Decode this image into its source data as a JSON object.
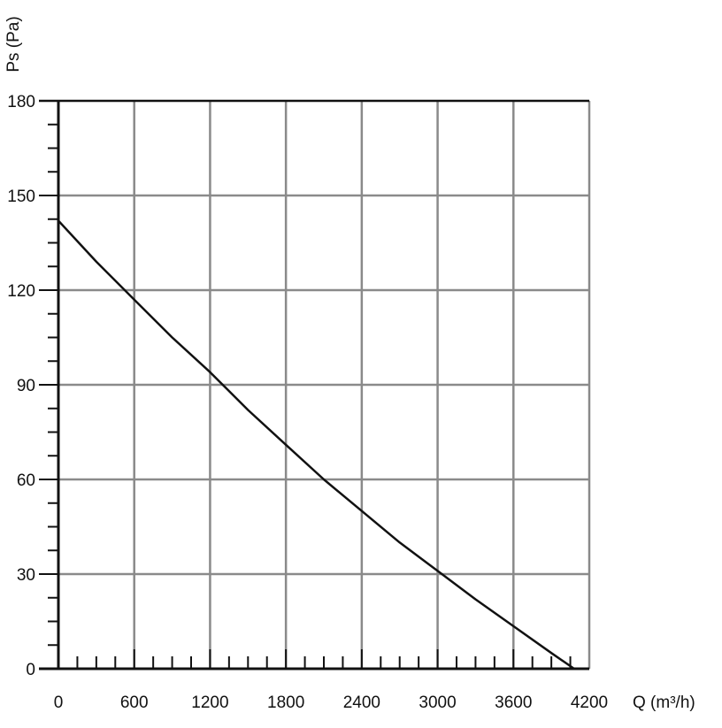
{
  "chart_data": {
    "type": "line",
    "title": "",
    "xlabel": "Q (m³/h)",
    "ylabel": "Ps (Pa)",
    "xlim": [
      0,
      4200
    ],
    "ylim": [
      0,
      180
    ],
    "xticks": [
      0,
      600,
      1200,
      1800,
      2400,
      3000,
      3600,
      4200
    ],
    "xtick_labels": [
      "0",
      "600",
      "1200",
      "1800",
      "2400",
      "3000",
      "3600",
      "4200"
    ],
    "yticks": [
      0,
      30,
      60,
      90,
      120,
      150,
      180
    ],
    "ytick_labels": [
      "0",
      "30",
      "60",
      "90",
      "120",
      "150",
      "180"
    ],
    "x_minor_step": 150,
    "y_minor_step": 7.5,
    "grid": true,
    "legend": "none",
    "colors": {
      "grid": "#8a8a8a",
      "axis": "#111111",
      "curve": "#111111"
    },
    "series": [
      {
        "x": [
          0,
          300,
          600,
          900,
          1200,
          1500,
          1800,
          2100,
          2400,
          2700,
          3000,
          3300,
          3600,
          3900,
          4080
        ],
        "y": [
          142,
          129,
          117,
          105,
          94,
          82,
          71,
          60,
          50,
          40,
          31,
          22,
          13.5,
          5,
          0
        ]
      }
    ]
  }
}
